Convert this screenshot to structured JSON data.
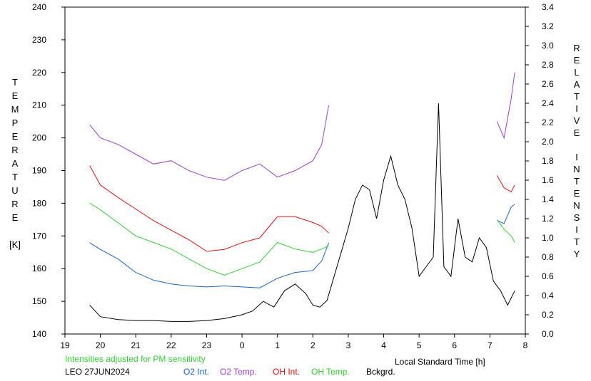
{
  "chart_data": {
    "type": "line",
    "title": "",
    "xlabel": "Local Standard Time [h]",
    "ylabel_left_chars": [
      "T",
      "E",
      "M",
      "P",
      "E",
      "R",
      "A",
      "T",
      "U",
      "R",
      "E",
      "",
      "[K]"
    ],
    "ylabel_right_chars": [
      "R",
      "E",
      "L",
      "A",
      "T",
      "I",
      "V",
      "E",
      "",
      "I",
      "N",
      "T",
      "E",
      "N",
      "S",
      "I",
      "T",
      "Y"
    ],
    "x_tick_labels": [
      "19",
      "20",
      "21",
      "22",
      "23",
      "0",
      "1",
      "2",
      "3",
      "4",
      "5",
      "6",
      "7",
      "8"
    ],
    "x_range_hours_since_19": [
      0,
      13
    ],
    "ylim_left": [
      140,
      240
    ],
    "ylim_right": [
      0.0,
      3.4
    ],
    "y_left_ticks": [
      140,
      150,
      160,
      170,
      180,
      190,
      200,
      210,
      220,
      230,
      240
    ],
    "y_right_ticks": [
      "0.0",
      "0.2",
      "0.4",
      "0.6",
      "0.8",
      "1.0",
      "1.2",
      "1.4",
      "1.6",
      "1.8",
      "2.0",
      "2.2",
      "2.4",
      "2.6",
      "2.8",
      "3.0",
      "3.2",
      "3.4"
    ],
    "note": "Intensities adjusted for PM sensitivity",
    "site_date": "LEO 27JUN2024",
    "colors": {
      "o2_int": "#1a64c8",
      "o2_temp": "#9a40cc",
      "oh_int": "#dd1111",
      "oh_temp": "#33cc33",
      "bckgrd": "#000000",
      "note": "#33cc33"
    },
    "series": [
      {
        "name": "O2 Int.",
        "axis": "right",
        "color": "#1a64c8",
        "x": [
          19.7,
          20.0,
          20.5,
          21.0,
          21.5,
          22.0,
          22.5,
          23.0,
          23.5,
          0.0,
          0.5,
          1.0,
          1.5,
          2.0,
          2.25,
          2.45,
          7.2,
          7.4,
          7.6,
          7.7
        ],
        "y": [
          0.95,
          0.88,
          0.78,
          0.64,
          0.56,
          0.52,
          0.5,
          0.49,
          0.5,
          0.49,
          0.48,
          0.58,
          0.64,
          0.66,
          0.76,
          0.95,
          1.18,
          1.15,
          1.32,
          1.35
        ]
      },
      {
        "name": "O2 Temp.",
        "axis": "left",
        "color": "#9a40cc",
        "x": [
          19.7,
          20.0,
          20.5,
          21.0,
          21.5,
          22.0,
          22.5,
          23.0,
          23.5,
          0.0,
          0.5,
          1.0,
          1.5,
          2.0,
          2.25,
          2.45,
          7.2,
          7.4,
          7.6,
          7.7
        ],
        "y": [
          204,
          200,
          198,
          195,
          192,
          193,
          190,
          188,
          187,
          190,
          192,
          188,
          190,
          193,
          198,
          210,
          205,
          200,
          212,
          220
        ]
      },
      {
        "name": "OH Int.",
        "axis": "right",
        "color": "#dd1111",
        "x": [
          19.7,
          20.0,
          20.5,
          21.0,
          21.5,
          22.0,
          22.5,
          23.0,
          23.5,
          0.0,
          0.5,
          1.0,
          1.5,
          2.0,
          2.25,
          2.45,
          7.2,
          7.4,
          7.6,
          7.7
        ],
        "y": [
          1.75,
          1.55,
          1.42,
          1.3,
          1.18,
          1.08,
          0.98,
          0.86,
          0.88,
          0.95,
          1.0,
          1.22,
          1.22,
          1.16,
          1.12,
          1.05,
          1.65,
          1.52,
          1.48,
          1.55
        ]
      },
      {
        "name": "OH Temp.",
        "axis": "left",
        "color": "#33cc33",
        "x": [
          19.7,
          20.0,
          20.5,
          21.0,
          21.5,
          22.0,
          22.5,
          23.0,
          23.5,
          0.0,
          0.5,
          1.0,
          1.5,
          2.0,
          2.25,
          2.45,
          7.2,
          7.4,
          7.6,
          7.7
        ],
        "y": [
          180,
          178,
          174,
          170,
          168,
          166,
          163,
          160,
          158,
          160,
          162,
          168,
          166,
          165,
          166,
          167,
          175,
          172,
          170,
          168
        ]
      },
      {
        "name": "Bckgrd.",
        "axis": "right",
        "color": "#000000",
        "x": [
          19.7,
          20.0,
          20.5,
          21.0,
          21.5,
          22.0,
          22.5,
          23.0,
          23.5,
          0.0,
          0.3,
          0.6,
          0.9,
          1.2,
          1.5,
          1.8,
          2.0,
          2.2,
          2.4,
          2.6,
          2.8,
          3.0,
          3.2,
          3.4,
          3.6,
          3.8,
          4.0,
          4.2,
          4.4,
          4.6,
          4.8,
          5.0,
          5.2,
          5.4,
          5.55,
          5.7,
          5.9,
          6.1,
          6.3,
          6.5,
          6.7,
          6.9,
          7.1,
          7.3,
          7.5,
          7.7
        ],
        "y": [
          0.3,
          0.18,
          0.15,
          0.14,
          0.14,
          0.13,
          0.13,
          0.14,
          0.16,
          0.2,
          0.24,
          0.34,
          0.28,
          0.45,
          0.52,
          0.42,
          0.3,
          0.28,
          0.35,
          0.6,
          0.85,
          1.1,
          1.4,
          1.55,
          1.5,
          1.2,
          1.6,
          1.85,
          1.55,
          1.4,
          1.1,
          0.6,
          0.7,
          0.8,
          2.4,
          0.7,
          0.6,
          1.2,
          0.8,
          0.75,
          1.0,
          0.9,
          0.55,
          0.45,
          0.3,
          0.45
        ]
      }
    ],
    "legend_placement": "bottom"
  }
}
